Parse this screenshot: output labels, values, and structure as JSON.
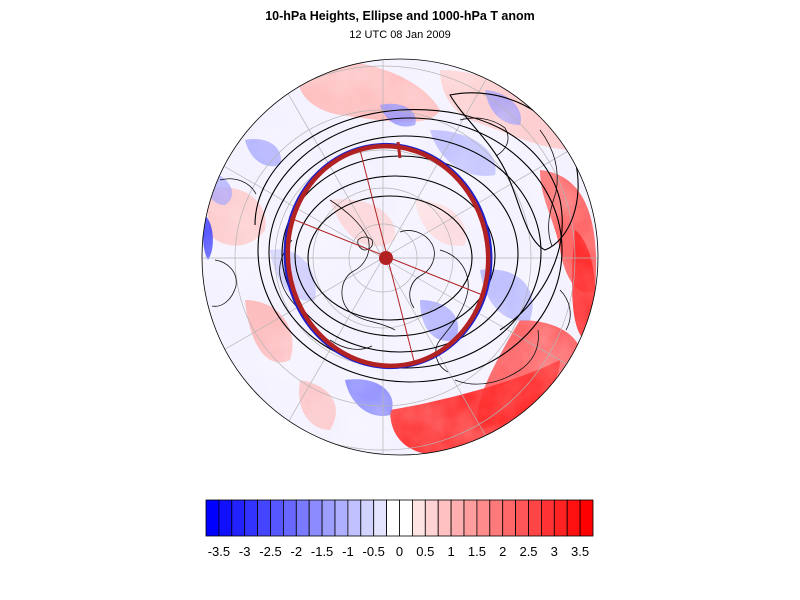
{
  "title": "10-hPa Heights, Ellipse and 1000-hPa T anom",
  "subtitle": "12 UTC 08 Jan 2009",
  "colorbar": {
    "labels": [
      "-3.5",
      "-3",
      "-2.5",
      "-2",
      "-1.5",
      "-1",
      "-0.5",
      "0",
      "0.5",
      "1",
      "1.5",
      "2",
      "2.5",
      "3",
      "3.5"
    ],
    "min": -3.75,
    "max": 3.75,
    "step": 0.25
  },
  "colors": {
    "negative": "#0000ff",
    "positive": "#ff0000",
    "neutral": "#ffffff",
    "ellipse": "#b22222",
    "contour": "#000000",
    "grid": "#b4b4b4"
  }
}
